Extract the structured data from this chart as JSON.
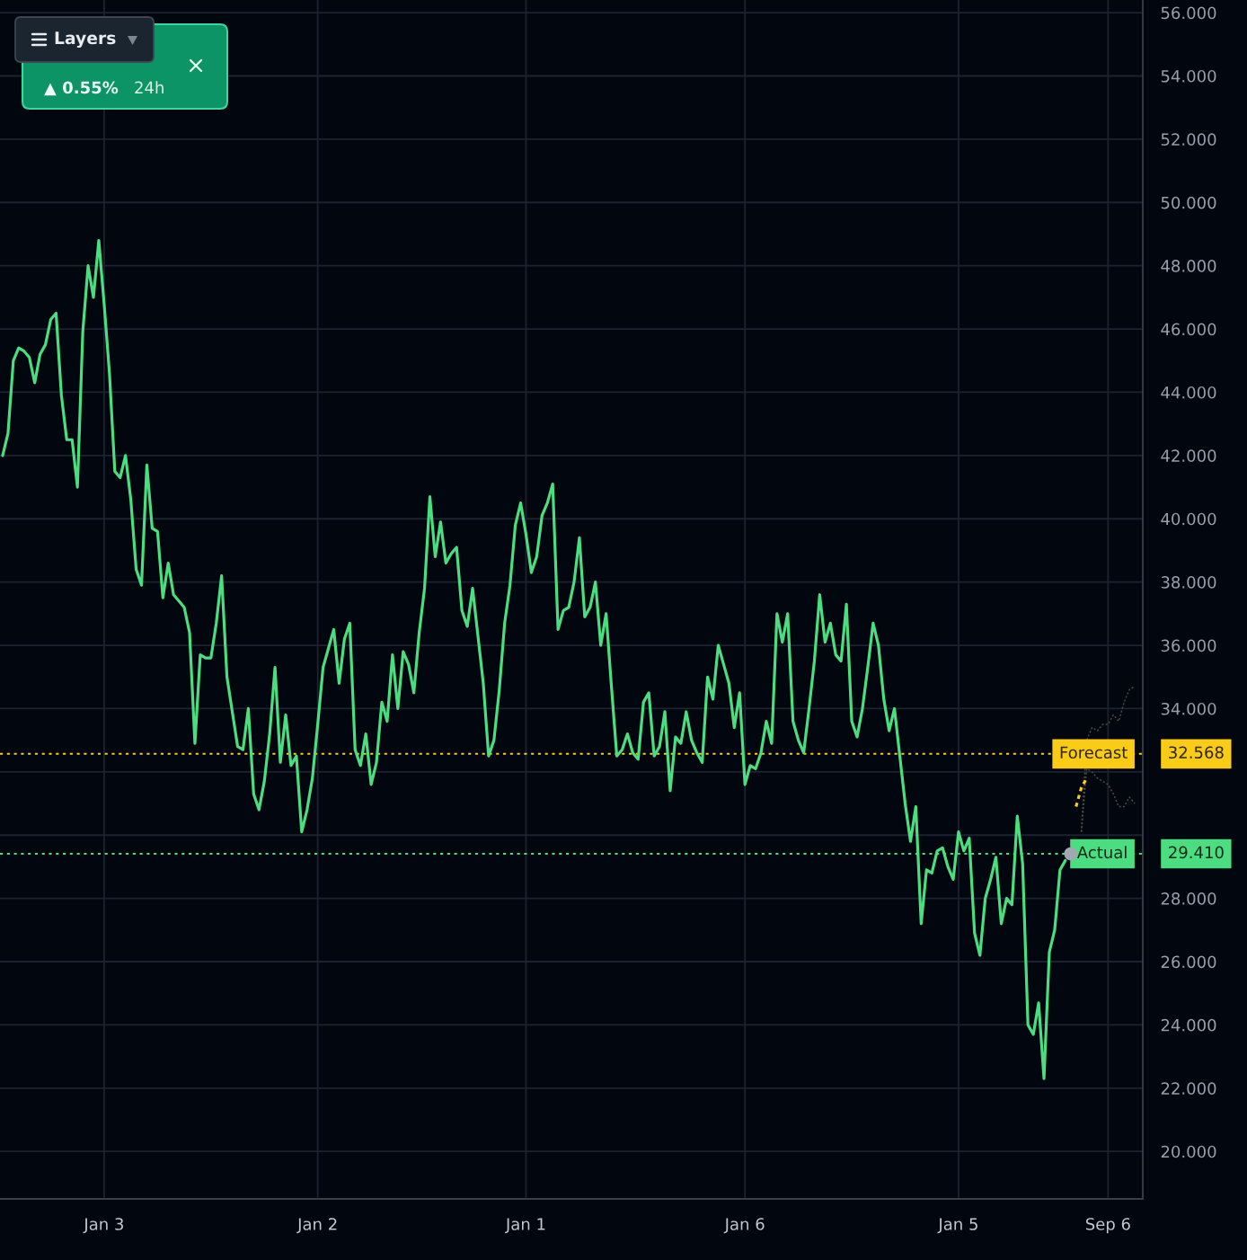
{
  "chart_data": {
    "type": "line",
    "line_style": "solid",
    "grid": true,
    "categories": [
      null,
      null,
      null,
      null,
      null,
      null,
      null,
      null,
      null,
      null,
      null,
      null,
      null,
      null,
      null,
      null,
      null,
      null,
      null,
      "Jan 3",
      null,
      null,
      null,
      null,
      null,
      null,
      null,
      null,
      null,
      null,
      null,
      null,
      null,
      null,
      null,
      null,
      null,
      null,
      null,
      null,
      null,
      null,
      null,
      null,
      null,
      null,
      null,
      null,
      null,
      null,
      null,
      null,
      null,
      null,
      null,
      null,
      null,
      null,
      null,
      "Jan 2",
      null,
      null,
      null,
      null,
      null,
      null,
      null,
      null,
      null,
      null,
      null,
      null,
      null,
      null,
      null,
      null,
      null,
      null,
      null,
      null,
      null,
      null,
      null,
      null,
      null,
      null,
      null,
      null,
      null,
      null,
      null,
      null,
      null,
      null,
      null,
      null,
      null,
      null,
      "Jan 1",
      null,
      null,
      null,
      null,
      null,
      null,
      null,
      null,
      null,
      null,
      null,
      null,
      null,
      null,
      null,
      null,
      null,
      null,
      null,
      null,
      null,
      null,
      null,
      null,
      null,
      null,
      null,
      null,
      null,
      null,
      null,
      null,
      null,
      null,
      null,
      null,
      null,
      null,
      null,
      null,
      "Jan 6",
      null,
      null,
      null,
      null,
      null,
      null,
      null,
      null,
      null,
      null,
      null,
      null,
      null,
      null,
      null,
      null,
      null,
      null,
      null,
      null,
      null,
      null,
      null,
      null,
      null,
      null,
      null,
      null,
      null,
      null,
      null,
      null,
      null,
      null,
      null,
      null,
      null,
      null,
      null,
      "Jan 5",
      null,
      null,
      null,
      null,
      null,
      null,
      null,
      null,
      null,
      null,
      null,
      null,
      null,
      null,
      null,
      null,
      null,
      null,
      null,
      null,
      null,
      null,
      null,
      null,
      null,
      null,
      null,
      "Sep 6",
      null,
      null,
      null,
      null,
      null,
      null
    ],
    "ylim": [
      18.5,
      56.4
    ],
    "yticks": [
      {
        "value": 20,
        "label": "20.000"
      },
      {
        "value": 22,
        "label": "22.000"
      },
      {
        "value": 24,
        "label": "24.000"
      },
      {
        "value": 26,
        "label": "26.000"
      },
      {
        "value": 28,
        "label": "28.000"
      },
      {
        "value": 30,
        "label": null
      },
      {
        "value": 32,
        "label": null
      },
      {
        "value": 34,
        "label": "34.000"
      },
      {
        "value": 36,
        "label": "36.000"
      },
      {
        "value": 38,
        "label": "38.000"
      },
      {
        "value": 40,
        "label": "40.000"
      },
      {
        "value": 42,
        "label": "42.000"
      },
      {
        "value": 44,
        "label": "44.000"
      },
      {
        "value": 46,
        "label": "46.000"
      },
      {
        "value": 48,
        "label": "48.000"
      },
      {
        "value": 50,
        "label": "50.000"
      },
      {
        "value": 52,
        "label": "52.000"
      },
      {
        "value": 54,
        "label": "54.000"
      },
      {
        "value": 56,
        "label": "56.000"
      }
    ],
    "series": [
      {
        "type": "line",
        "color": "#4ade80",
        "values": [
          42.0,
          42.7,
          45.0,
          45.4,
          45.3,
          45.1,
          44.3,
          45.2,
          45.5,
          46.3,
          46.5,
          43.9,
          42.5,
          42.5,
          41.0,
          45.9,
          48.0,
          47.0,
          48.8,
          46.8,
          44.6,
          41.5,
          41.3,
          42.0,
          40.6,
          38.4,
          37.9,
          41.7,
          39.7,
          39.6,
          37.5,
          38.6,
          37.6,
          37.4,
          37.2,
          36.4,
          32.9,
          35.7,
          35.6,
          35.6,
          36.7,
          38.2,
          35.0,
          33.9,
          32.8,
          32.7,
          34.0,
          31.3,
          30.8,
          31.7,
          33.2,
          35.3,
          32.3,
          33.8,
          32.2,
          32.5,
          30.1,
          30.8,
          31.8,
          33.5,
          35.3,
          35.9,
          36.5,
          34.8,
          36.2,
          36.7,
          32.7,
          32.2,
          33.2,
          31.6,
          32.3,
          34.2,
          33.6,
          35.7,
          34.0,
          35.8,
          35.4,
          34.5,
          36.4,
          37.8,
          40.7,
          38.8,
          39.9,
          38.6,
          38.9,
          39.1,
          37.1,
          36.6,
          37.8,
          36.3,
          34.8,
          32.5,
          33.0,
          34.6,
          36.7,
          37.9,
          39.8,
          40.5,
          39.5,
          38.3,
          38.8,
          40.1,
          40.5,
          41.1,
          36.5,
          37.1,
          37.2,
          38.0,
          39.4,
          36.9,
          37.2,
          38.0,
          36.0,
          37.0,
          34.7,
          32.5,
          32.7,
          33.2,
          32.6,
          32.4,
          34.2,
          34.5,
          32.5,
          32.8,
          33.9,
          31.4,
          33.1,
          32.9,
          33.9,
          33.0,
          32.6,
          32.3,
          35.0,
          34.3,
          36.0,
          35.4,
          34.8,
          33.4,
          34.5,
          31.6,
          32.2,
          32.1,
          32.6,
          33.6,
          32.9,
          37.0,
          36.1,
          37.0,
          33.6,
          33.0,
          32.6,
          34.0,
          35.5,
          37.6,
          36.1,
          36.7,
          35.7,
          35.5,
          37.3,
          33.6,
          33.1,
          34.0,
          35.3,
          36.7,
          36.0,
          34.3,
          33.3,
          34.0,
          32.5,
          31.0,
          29.8,
          30.9,
          27.2,
          28.9,
          28.8,
          29.5,
          29.6,
          29.0,
          28.6,
          30.1,
          29.5,
          29.9,
          26.9,
          26.2,
          28.0,
          28.6,
          29.3,
          27.2,
          28.0,
          27.8,
          30.6,
          29.1,
          24.0,
          23.7,
          24.7,
          22.3,
          26.3,
          27.0,
          28.9,
          29.2,
          null,
          null,
          null,
          null,
          null,
          null,
          null,
          null,
          null,
          null,
          null,
          null,
          null,
          null
        ]
      },
      {
        "type": "line",
        "color": "#facc15",
        "line_style": "dotted",
        "values": [
          null,
          null,
          null,
          null,
          null,
          null,
          null,
          null,
          null,
          null,
          null,
          null,
          null,
          null,
          null,
          null,
          null,
          null,
          null,
          null,
          null,
          null,
          null,
          null,
          null,
          null,
          null,
          null,
          null,
          null,
          null,
          null,
          null,
          null,
          null,
          null,
          null,
          null,
          null,
          null,
          null,
          null,
          null,
          null,
          null,
          null,
          null,
          null,
          null,
          null,
          null,
          null,
          null,
          null,
          null,
          null,
          null,
          null,
          null,
          null,
          null,
          null,
          null,
          null,
          null,
          null,
          null,
          null,
          null,
          null,
          null,
          null,
          null,
          null,
          null,
          null,
          null,
          null,
          null,
          null,
          null,
          null,
          null,
          null,
          null,
          null,
          null,
          null,
          null,
          null,
          null,
          null,
          null,
          null,
          null,
          null,
          null,
          null,
          null,
          null,
          null,
          null,
          null,
          null,
          null,
          null,
          null,
          null,
          null,
          null,
          null,
          null,
          null,
          null,
          null,
          null,
          null,
          null,
          null,
          null,
          null,
          null,
          null,
          null,
          null,
          null,
          null,
          null,
          null,
          null,
          null,
          null,
          null,
          null,
          null,
          null,
          null,
          null,
          null,
          null,
          null,
          null,
          null,
          null,
          null,
          null,
          null,
          null,
          null,
          null,
          null,
          null,
          null,
          null,
          null,
          null,
          null,
          null,
          null,
          null,
          null,
          null,
          null,
          null,
          null,
          null,
          null,
          null,
          null,
          null,
          null,
          null,
          null,
          null,
          null,
          null,
          null,
          null,
          null,
          null,
          null,
          null,
          null,
          null,
          null,
          null,
          null,
          null,
          null,
          null,
          null,
          null,
          null,
          null,
          null,
          null,
          null,
          null,
          null,
          null,
          null,
          30.9,
          31.5,
          31.8,
          null,
          null,
          null,
          null,
          null,
          null,
          null,
          null,
          null,
          null
        ]
      },
      {
        "type": "line",
        "color": "#4a4a3e",
        "line_style": "dotted",
        "values": [
          null,
          null,
          null,
          null,
          null,
          null,
          null,
          null,
          null,
          null,
          null,
          null,
          null,
          null,
          null,
          null,
          null,
          null,
          null,
          null,
          null,
          null,
          null,
          null,
          null,
          null,
          null,
          null,
          null,
          null,
          null,
          null,
          null,
          null,
          null,
          null,
          null,
          null,
          null,
          null,
          null,
          null,
          null,
          null,
          null,
          null,
          null,
          null,
          null,
          null,
          null,
          null,
          null,
          null,
          null,
          null,
          null,
          null,
          null,
          null,
          null,
          null,
          null,
          null,
          null,
          null,
          null,
          null,
          null,
          null,
          null,
          null,
          null,
          null,
          null,
          null,
          null,
          null,
          null,
          null,
          null,
          null,
          null,
          null,
          null,
          null,
          null,
          null,
          null,
          null,
          null,
          null,
          null,
          null,
          null,
          null,
          null,
          null,
          null,
          null,
          null,
          null,
          null,
          null,
          null,
          null,
          null,
          null,
          null,
          null,
          null,
          null,
          null,
          null,
          null,
          null,
          null,
          null,
          null,
          null,
          null,
          null,
          null,
          null,
          null,
          null,
          null,
          null,
          null,
          null,
          null,
          null,
          null,
          null,
          null,
          null,
          null,
          null,
          null,
          null,
          null,
          null,
          null,
          null,
          null,
          null,
          null,
          null,
          null,
          null,
          null,
          null,
          null,
          null,
          null,
          null,
          null,
          null,
          null,
          null,
          null,
          null,
          null,
          null,
          null,
          null,
          null,
          null,
          null,
          null,
          null,
          null,
          null,
          null,
          null,
          null,
          null,
          null,
          null,
          null,
          null,
          null,
          null,
          null,
          null,
          null,
          null,
          null,
          null,
          null,
          null,
          null,
          null,
          null,
          null,
          null,
          null,
          null,
          null,
          null,
          null,
          null,
          30.1,
          33.0,
          33.4,
          33.3,
          33.5,
          33.5,
          33.8,
          33.6,
          34.2,
          34.6,
          34.7,
          null
        ]
      },
      {
        "type": "line",
        "color": "#4a4a3e",
        "line_style": "dotted",
        "values": [
          null,
          null,
          null,
          null,
          null,
          null,
          null,
          null,
          null,
          null,
          null,
          null,
          null,
          null,
          null,
          null,
          null,
          null,
          null,
          null,
          null,
          null,
          null,
          null,
          null,
          null,
          null,
          null,
          null,
          null,
          null,
          null,
          null,
          null,
          null,
          null,
          null,
          null,
          null,
          null,
          null,
          null,
          null,
          null,
          null,
          null,
          null,
          null,
          null,
          null,
          null,
          null,
          null,
          null,
          null,
          null,
          null,
          null,
          null,
          null,
          null,
          null,
          null,
          null,
          null,
          null,
          null,
          null,
          null,
          null,
          null,
          null,
          null,
          null,
          null,
          null,
          null,
          null,
          null,
          null,
          null,
          null,
          null,
          null,
          null,
          null,
          null,
          null,
          null,
          null,
          null,
          null,
          null,
          null,
          null,
          null,
          null,
          null,
          null,
          null,
          null,
          null,
          null,
          null,
          null,
          null,
          null,
          null,
          null,
          null,
          null,
          null,
          null,
          null,
          null,
          null,
          null,
          null,
          null,
          null,
          null,
          null,
          null,
          null,
          null,
          null,
          null,
          null,
          null,
          null,
          null,
          null,
          null,
          null,
          null,
          null,
          null,
          null,
          null,
          null,
          null,
          null,
          null,
          null,
          null,
          null,
          null,
          null,
          null,
          null,
          null,
          null,
          null,
          null,
          null,
          null,
          null,
          null,
          null,
          null,
          null,
          null,
          null,
          null,
          null,
          null,
          null,
          null,
          null,
          null,
          null,
          null,
          null,
          null,
          null,
          null,
          null,
          null,
          null,
          null,
          null,
          null,
          null,
          null,
          null,
          null,
          null,
          null,
          null,
          null,
          null,
          null,
          null,
          null,
          null,
          null,
          null,
          null,
          null,
          null,
          null,
          null,
          30.1,
          32.1,
          32.0,
          31.8,
          31.7,
          31.6,
          31.3,
          30.9,
          30.9,
          31.2,
          31.0,
          null
        ]
      },
      {
        "type": "scatter",
        "color": "#a3a7b3",
        "marker": "circle",
        "values": [
          null,
          null,
          null,
          null,
          null,
          null,
          null,
          null,
          null,
          null,
          null,
          null,
          null,
          null,
          null,
          null,
          null,
          null,
          null,
          null,
          null,
          null,
          null,
          null,
          null,
          null,
          null,
          null,
          null,
          null,
          null,
          null,
          null,
          null,
          null,
          null,
          null,
          null,
          null,
          null,
          null,
          null,
          null,
          null,
          null,
          null,
          null,
          null,
          null,
          null,
          null,
          null,
          null,
          null,
          null,
          null,
          null,
          null,
          null,
          null,
          null,
          null,
          null,
          null,
          null,
          null,
          null,
          null,
          null,
          null,
          null,
          null,
          null,
          null,
          null,
          null,
          null,
          null,
          null,
          null,
          null,
          null,
          null,
          null,
          null,
          null,
          null,
          null,
          null,
          null,
          null,
          null,
          null,
          null,
          null,
          null,
          null,
          null,
          null,
          null,
          null,
          null,
          null,
          null,
          null,
          null,
          null,
          null,
          null,
          null,
          null,
          null,
          null,
          null,
          null,
          null,
          null,
          null,
          null,
          null,
          null,
          null,
          null,
          null,
          null,
          null,
          null,
          null,
          null,
          null,
          null,
          null,
          null,
          null,
          null,
          null,
          null,
          null,
          null,
          null,
          null,
          null,
          null,
          null,
          null,
          null,
          null,
          null,
          null,
          null,
          null,
          null,
          null,
          null,
          null,
          null,
          null,
          null,
          null,
          null,
          null,
          null,
          null,
          null,
          null,
          null,
          null,
          null,
          null,
          null,
          null,
          null,
          null,
          null,
          null,
          null,
          null,
          null,
          null,
          null,
          null,
          null,
          null,
          null,
          null,
          null,
          null,
          null,
          null,
          null,
          null,
          null,
          null,
          null,
          null,
          null,
          null,
          null,
          null,
          null,
          29.41,
          null,
          null,
          null,
          null,
          null,
          null,
          null,
          null,
          null,
          null,
          null,
          null,
          null
        ]
      }
    ],
    "ref_lines": [
      {
        "axis": "y",
        "value": 32.568,
        "label": "Forecast",
        "color": "#facc15",
        "line_style": "dotted"
      },
      {
        "axis": "y",
        "value": 29.41,
        "label": "Actual",
        "color": "#4ade80",
        "line_style": "dotted"
      }
    ],
    "annotations": [
      "Layers",
      "▲ 0.55%",
      "24h",
      "32.568",
      "29.410"
    ]
  }
}
